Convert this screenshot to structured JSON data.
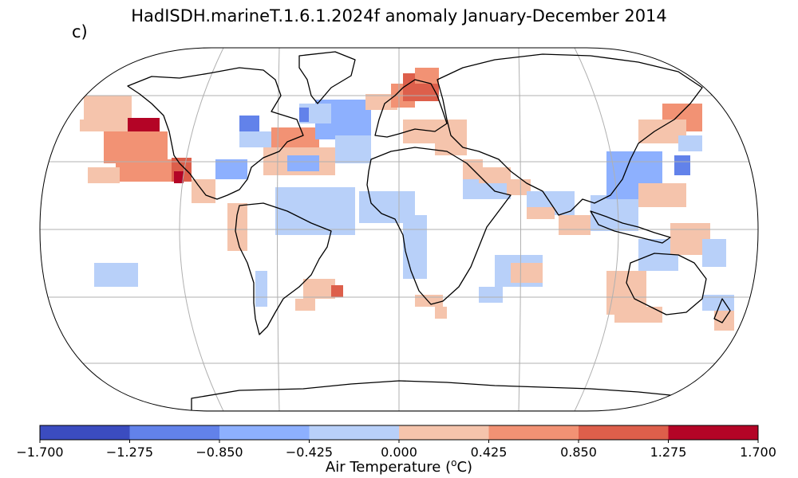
{
  "title": "HadISDH.marineT.1.6.1.2024f anomaly January-December 2014",
  "panel_label": "c)",
  "colorbar": {
    "label_prefix": "Air Temperature (",
    "label_sup": "o",
    "label_suffix": "C)",
    "ticks": [
      "−1.700",
      "−1.275",
      "−0.850",
      "−0.425",
      "0.000",
      "0.425",
      "0.850",
      "1.275",
      "1.700"
    ],
    "colors": [
      "#3b4cc0",
      "#6282ea",
      "#8db0fe",
      "#b8d0f9",
      "#f5c4ac",
      "#f29274",
      "#dd5f4b",
      "#b40426"
    ]
  },
  "map_style": {
    "projection": "Robinson",
    "grid_color": "#b0b0b0",
    "coast_color": "#000000"
  }
}
